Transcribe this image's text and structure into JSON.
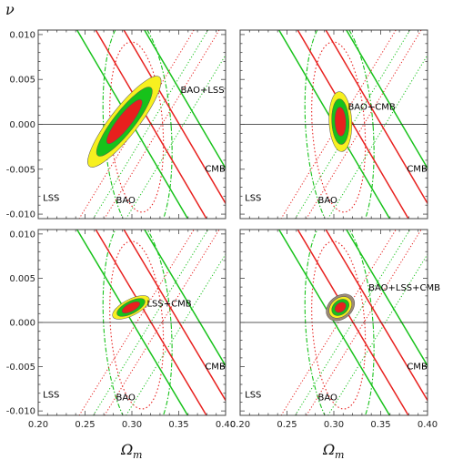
{
  "figure": {
    "ylabel_symbol": "ν",
    "xlabel_main": "Ω",
    "xlabel_sub": "m"
  },
  "chart_data": [
    {
      "type": "contour",
      "xlabel": "",
      "ylabel": "",
      "xlim": [
        0.2,
        0.4
      ],
      "ylim": [
        -0.0105,
        0.0105
      ],
      "x_ticks": [
        "0.20",
        "0.25",
        "0.30",
        "0.35",
        "0.40"
      ],
      "y_ticks": [
        "0.010",
        "0.005",
        "0.000",
        "-0.005",
        "-0.010"
      ],
      "combined_label": "BAO+LSS",
      "combined": {
        "center": [
          0.292,
          0.0003
        ],
        "sigma_x": 0.0135,
        "sigma_y": 0.00175,
        "rho": 0.88
      },
      "show_x_ticks": false,
      "show_y_ticks": true,
      "labels": {
        "lss": "LSS",
        "bao": "BAO",
        "cmb": "CMB"
      }
    },
    {
      "type": "contour",
      "xlabel": "",
      "ylabel": "",
      "xlim": [
        0.2,
        0.4
      ],
      "ylim": [
        -0.0105,
        0.0105
      ],
      "combined_label": "BAO+CMB",
      "combined": {
        "center": [
          0.307,
          0.0003
        ],
        "sigma_x": 0.0042,
        "sigma_y": 0.00115,
        "rho": -0.1
      },
      "show_x_ticks": false,
      "show_y_ticks": false,
      "labels": {
        "lss": "LSS",
        "bao": "BAO",
        "cmb": "CMB"
      }
    },
    {
      "type": "contour",
      "xlabel": "",
      "ylabel": "",
      "xlim": [
        0.2,
        0.4
      ],
      "ylim": [
        -0.0105,
        0.0105
      ],
      "x_ticks": [
        "0.20",
        "0.25",
        "0.30",
        "0.35",
        "0.40"
      ],
      "y_ticks": [
        "0.010",
        "0.005",
        "0.000",
        "-0.005",
        "-0.010"
      ],
      "combined_label": "LSS+CMB",
      "combined": {
        "center": [
          0.299,
          0.0017
        ],
        "sigma_x": 0.0068,
        "sigma_y": 0.00046,
        "rho": 0.65
      },
      "show_x_ticks": true,
      "show_y_ticks": true,
      "labels": {
        "lss": "LSS",
        "bao": "BAO",
        "cmb": "CMB"
      }
    },
    {
      "type": "contour",
      "xlabel": "",
      "ylabel": "",
      "xlim": [
        0.2,
        0.4
      ],
      "ylim": [
        -0.0105,
        0.0105
      ],
      "x_ticks": [
        "0.20",
        "0.25",
        "0.30",
        "0.35",
        "0.40"
      ],
      "combined_label": "BAO+LSS+CMB",
      "combined": {
        "center": [
          0.307,
          0.0017
        ],
        "sigma_x": 0.0042,
        "sigma_y": 0.00042,
        "rho": 0.3
      },
      "extra_outer_brown": true,
      "show_x_ticks": true,
      "show_y_ticks": false,
      "labels": {
        "lss": "LSS",
        "bao": "BAO",
        "cmb": "CMB"
      }
    }
  ],
  "style": {
    "red": "#e8201e",
    "green": "#17c21a",
    "yellow": "#f7f01f",
    "brown": "#9d8a76",
    "zero_line": "#222222"
  }
}
